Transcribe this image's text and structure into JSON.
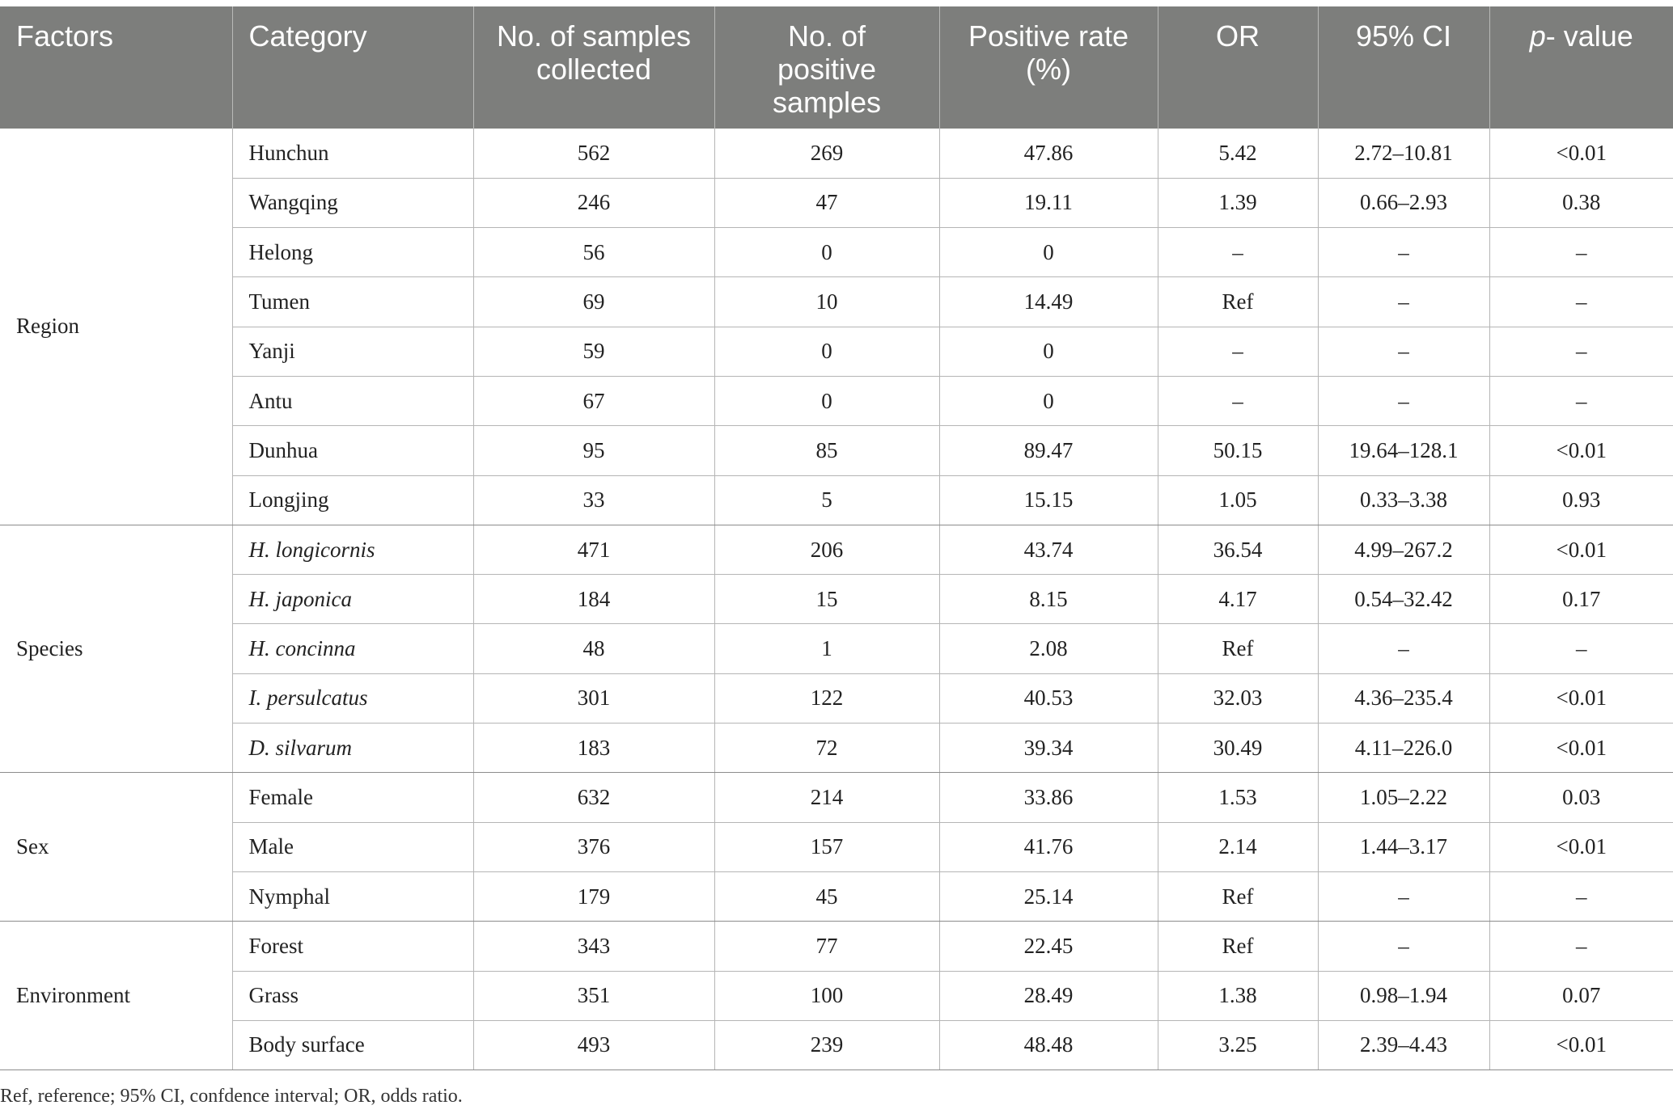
{
  "headers": {
    "factors": "Factors",
    "category": "Category",
    "samples_collected": "No. of samples collected",
    "positive_samples": "No. of positive samples",
    "positive_rate": "Positive rate (%)",
    "or": "OR",
    "ci": "95% CI",
    "pvalue_p": "p",
    "pvalue_rest": "- value"
  },
  "groups": [
    {
      "factor": "Region",
      "rows": [
        {
          "category": "Hunchun",
          "collected": "562",
          "positive": "269",
          "rate": "47.86",
          "or": "5.42",
          "ci": "2.72–10.81",
          "p": "<0.01"
        },
        {
          "category": "Wangqing",
          "collected": "246",
          "positive": "47",
          "rate": "19.11",
          "or": "1.39",
          "ci": "0.66–2.93",
          "p": "0.38"
        },
        {
          "category": "Helong",
          "collected": "56",
          "positive": "0",
          "rate": "0",
          "or": "–",
          "ci": "–",
          "p": "–"
        },
        {
          "category": "Tumen",
          "collected": "69",
          "positive": "10",
          "rate": "14.49",
          "or": "Ref",
          "ci": "–",
          "p": "–"
        },
        {
          "category": "Yanji",
          "collected": "59",
          "positive": "0",
          "rate": "0",
          "or": "–",
          "ci": "–",
          "p": "–"
        },
        {
          "category": "Antu",
          "collected": "67",
          "positive": "0",
          "rate": "0",
          "or": "–",
          "ci": "–",
          "p": "–"
        },
        {
          "category": "Dunhua",
          "collected": "95",
          "positive": "85",
          "rate": "89.47",
          "or": "50.15",
          "ci": "19.64–128.1",
          "p": "<0.01"
        },
        {
          "category": "Longjing",
          "collected": "33",
          "positive": "5",
          "rate": "15.15",
          "or": "1.05",
          "ci": "0.33–3.38",
          "p": "0.93"
        }
      ]
    },
    {
      "factor": "Species",
      "rows": [
        {
          "category": "H. longicornis",
          "collected": "471",
          "positive": "206",
          "rate": "43.74",
          "or": "36.54",
          "ci": "4.99–267.2",
          "p": "<0.01"
        },
        {
          "category": "H. japonica",
          "collected": "184",
          "positive": "15",
          "rate": "8.15",
          "or": "4.17",
          "ci": "0.54–32.42",
          "p": "0.17"
        },
        {
          "category": "H. concinna",
          "collected": "48",
          "positive": "1",
          "rate": "2.08",
          "or": "Ref",
          "ci": "–",
          "p": "–"
        },
        {
          "category": "I. persulcatus",
          "collected": "301",
          "positive": "122",
          "rate": "40.53",
          "or": "32.03",
          "ci": "4.36–235.4",
          "p": "<0.01"
        },
        {
          "category": "D. silvarum",
          "collected": "183",
          "positive": "72",
          "rate": "39.34",
          "or": "30.49",
          "ci": "4.11–226.0",
          "p": "<0.01"
        }
      ]
    },
    {
      "factor": "Sex",
      "rows": [
        {
          "category": "Female",
          "collected": "632",
          "positive": "214",
          "rate": "33.86",
          "or": "1.53",
          "ci": "1.05–2.22",
          "p": "0.03"
        },
        {
          "category": "Male",
          "collected": "376",
          "positive": "157",
          "rate": "41.76",
          "or": "2.14",
          "ci": "1.44–3.17",
          "p": "<0.01"
        },
        {
          "category": "Nymphal",
          "collected": "179",
          "positive": "45",
          "rate": "25.14",
          "or": "Ref",
          "ci": "–",
          "p": "–"
        }
      ]
    },
    {
      "factor": "Environment",
      "rows": [
        {
          "category": "Forest",
          "collected": "343",
          "positive": "77",
          "rate": "22.45",
          "or": "Ref",
          "ci": "–",
          "p": "–"
        },
        {
          "category": "Grass",
          "collected": "351",
          "positive": "100",
          "rate": "28.49",
          "or": "1.38",
          "ci": "0.98–1.94",
          "p": "0.07"
        },
        {
          "category": "Body surface",
          "collected": "493",
          "positive": "239",
          "rate": "48.48",
          "or": "3.25",
          "ci": "2.39–4.43",
          "p": "<0.01"
        }
      ]
    }
  ],
  "footnote": "Ref, reference; 95% CI, confdence interval; OR, odds ratio."
}
